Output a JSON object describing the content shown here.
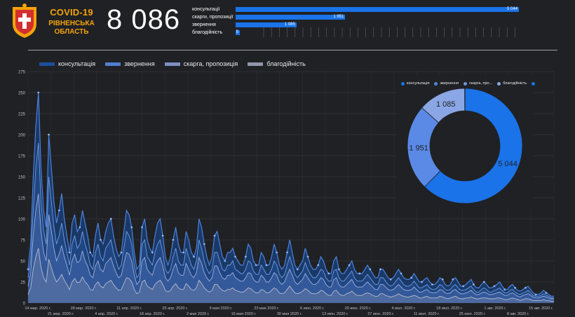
{
  "header": {
    "title": "COVID-19",
    "region": "РІВНЕНСЬКА ОБЛАСТЬ",
    "total": "8 086"
  },
  "categories": [
    {
      "label": "консультації",
      "value": "5 044",
      "fraction": 1.0
    },
    {
      "label": "скарги, пропозиції",
      "value": "1 951",
      "fraction": 0.387
    },
    {
      "label": "звернення",
      "value": "1 085",
      "fraction": 0.215
    },
    {
      "label": "благодійність",
      "value": "5",
      "fraction": 0.01
    }
  ],
  "colors": {
    "accent": "#1a73e8",
    "brand": "#f4a30a",
    "background": "#202124"
  },
  "chart_data": [
    {
      "type": "area",
      "legend": [
        "консультація",
        "звернення",
        "скарга, пропозиція",
        "благодійність"
      ],
      "legend_colors": [
        "#1a4f9c",
        "#4f7fd0",
        "#7d8fc4",
        "#8f96a8"
      ],
      "ylim": [
        0,
        275
      ],
      "yticks": [
        "0",
        "25",
        "50",
        "75",
        "100",
        "125",
        "150",
        "175",
        "200",
        "225",
        "250",
        "275"
      ],
      "grid": true,
      "xtick_top": [
        "14 мар. 2020 г.",
        "28 мар. 2020 г.",
        "11 апр. 2020 г.",
        "25 апр. 2020 г.",
        "9 мая 2020 г.",
        "23 мая 2020 г.",
        "6 июн. 2020 г.",
        "20 июн. 2020 г.",
        "4 июл. 2020 г.",
        "18 июл. 2020 г.",
        "1 авг. 2020 г.",
        "15 авг. 2020 г."
      ],
      "xtick_bottom": [
        "21 мар. 2020 г.",
        "4 апр. 2020 г.",
        "18 апр. 2020 г.",
        "2 мая 2020 г.",
        "16 мая 2020 г.",
        "30 мая 2020 г.",
        "13 июн. 2020 г.",
        "27 июн. 2020 г.",
        "11 июл. 2020 г.",
        "25 июл. 2020 г.",
        "8 авг. 2020 г."
      ],
      "series": [
        {
          "name": "консультація",
          "values": [
            40,
            70,
            150,
            210,
            250,
            160,
            110,
            90,
            200,
            160,
            120,
            95,
            110,
            130,
            100,
            80,
            60,
            95,
            105,
            85,
            90,
            110,
            95,
            80,
            60,
            55,
            80,
            95,
            75,
            70,
            85,
            95,
            100,
            80,
            65,
            55,
            60,
            85,
            110,
            105,
            90,
            60,
            40,
            45,
            90,
            100,
            75,
            65,
            60,
            80,
            95,
            100,
            80,
            55,
            45,
            55,
            75,
            90,
            70,
            60,
            60,
            85,
            75,
            60,
            55,
            65,
            100,
            90,
            70,
            55,
            45,
            55,
            80,
            85,
            70,
            55,
            50,
            60,
            60,
            65,
            55,
            50,
            45,
            45,
            55,
            70,
            65,
            50,
            45,
            45,
            60,
            55,
            45,
            45,
            55,
            70,
            60,
            45,
            40,
            45,
            60,
            75,
            60,
            45,
            40,
            45,
            50,
            65,
            55,
            45,
            40,
            40,
            45,
            55,
            50,
            40,
            35,
            35,
            50,
            55,
            40,
            35,
            35,
            40,
            45,
            50,
            40,
            35,
            35,
            35,
            40,
            45,
            40,
            35,
            30,
            30,
            40,
            40,
            35,
            30,
            28,
            30,
            35,
            40,
            35,
            30,
            28,
            28,
            30,
            35,
            30,
            25,
            25,
            28,
            30,
            25,
            22,
            22,
            25,
            30,
            28,
            22,
            20,
            22,
            28,
            30,
            25,
            20,
            20,
            22,
            25,
            28,
            22,
            18,
            18,
            22,
            25,
            22,
            18,
            18,
            20,
            22,
            25,
            20,
            16,
            16,
            20,
            22,
            18,
            15,
            14,
            16,
            18,
            20,
            16,
            12,
            10,
            10,
            12,
            15,
            12,
            10,
            8,
            8
          ]
        },
        {
          "name": "звернення",
          "values": [
            30,
            50,
            110,
            160,
            190,
            120,
            85,
            70,
            150,
            120,
            90,
            70,
            80,
            95,
            75,
            60,
            45,
            70,
            80,
            65,
            70,
            85,
            70,
            60,
            45,
            40,
            60,
            70,
            55,
            50,
            65,
            70,
            75,
            60,
            50,
            40,
            45,
            65,
            85,
            80,
            70,
            45,
            30,
            35,
            70,
            75,
            55,
            50,
            45,
            60,
            70,
            75,
            60,
            40,
            35,
            40,
            55,
            65,
            50,
            45,
            45,
            65,
            55,
            45,
            40,
            50,
            75,
            65,
            50,
            40,
            35,
            40,
            60,
            60,
            50,
            40,
            38,
            45,
            45,
            50,
            40,
            38,
            35,
            35,
            40,
            50,
            48,
            38,
            34,
            34,
            45,
            40,
            34,
            34,
            40,
            50,
            45,
            34,
            30,
            34,
            45,
            55,
            45,
            34,
            30,
            34,
            38,
            48,
            40,
            34,
            30,
            30,
            34,
            40,
            38,
            30,
            26,
            26,
            38,
            40,
            30,
            26,
            26,
            30,
            34,
            38,
            30,
            26,
            26,
            26,
            30,
            34,
            30,
            26,
            22,
            22,
            30,
            30,
            26,
            22,
            20,
            22,
            26,
            30,
            26,
            22,
            20,
            20,
            22,
            26,
            22,
            18,
            18,
            20,
            22,
            18,
            16,
            16,
            18,
            22,
            20,
            16,
            15,
            16,
            20,
            22,
            18,
            15,
            15,
            16,
            18,
            20,
            16,
            13,
            13,
            16,
            18,
            16,
            13,
            13,
            15,
            16,
            18,
            15,
            12,
            12,
            15,
            16,
            13,
            11,
            10,
            12,
            13,
            15,
            12,
            9,
            8,
            8,
            9,
            11,
            9,
            8,
            6,
            6
          ]
        },
        {
          "name": "скарга, пропозиція",
          "values": [
            20,
            35,
            80,
            110,
            130,
            85,
            60,
            50,
            105,
            85,
            65,
            50,
            58,
            68,
            55,
            45,
            33,
            50,
            58,
            48,
            50,
            62,
            50,
            44,
            33,
            30,
            44,
            50,
            40,
            37,
            47,
            50,
            54,
            44,
            36,
            30,
            33,
            47,
            60,
            58,
            50,
            33,
            22,
            26,
            50,
            54,
            40,
            36,
            33,
            44,
            50,
            54,
            44,
            30,
            26,
            30,
            40,
            47,
            36,
            33,
            33,
            47,
            40,
            33,
            30,
            36,
            54,
            47,
            36,
            30,
            26,
            30,
            44,
            44,
            36,
            30,
            28,
            33,
            33,
            36,
            30,
            28,
            26,
            26,
            30,
            36,
            35,
            28,
            25,
            25,
            33,
            30,
            25,
            25,
            30,
            36,
            33,
            25,
            22,
            25,
            33,
            40,
            33,
            25,
            22,
            25,
            28,
            35,
            30,
            25,
            22,
            22,
            25,
            30,
            28,
            22,
            19,
            19,
            28,
            30,
            22,
            19,
            19,
            22,
            25,
            28,
            22,
            19,
            19,
            19,
            22,
            25,
            22,
            19,
            16,
            16,
            22,
            22,
            19,
            16,
            15,
            16,
            19,
            22,
            19,
            16,
            15,
            15,
            16,
            19,
            16,
            13,
            13,
            15,
            16,
            13,
            12,
            12,
            13,
            16,
            15,
            12,
            11,
            12,
            15,
            16,
            13,
            11,
            11,
            12,
            13,
            15,
            12,
            10,
            10,
            12,
            13,
            12,
            10,
            10,
            11,
            12,
            13,
            11,
            9,
            9,
            11,
            12,
            10,
            8,
            7,
            9,
            10,
            11,
            9,
            7,
            6,
            6,
            7,
            8,
            7,
            6,
            5,
            5
          ]
        },
        {
          "name": "благодійність",
          "values": [
            10,
            18,
            40,
            55,
            65,
            42,
            30,
            25,
            52,
            42,
            32,
            25,
            29,
            34,
            27,
            22,
            16,
            25,
            29,
            24,
            25,
            31,
            25,
            22,
            16,
            15,
            22,
            25,
            20,
            18,
            23,
            25,
            27,
            22,
            18,
            15,
            16,
            23,
            30,
            29,
            25,
            16,
            11,
            13,
            25,
            27,
            20,
            18,
            16,
            22,
            25,
            27,
            22,
            15,
            13,
            15,
            20,
            23,
            18,
            16,
            16,
            23,
            20,
            16,
            15,
            18,
            27,
            23,
            18,
            15,
            13,
            15,
            22,
            22,
            18,
            15,
            14,
            16,
            16,
            18,
            15,
            14,
            13,
            13,
            15,
            18,
            17,
            14,
            12,
            12,
            16,
            15,
            12,
            12,
            15,
            18,
            16,
            12,
            11,
            12,
            16,
            20,
            16,
            12,
            11,
            12,
            14,
            17,
            15,
            12,
            11,
            11,
            12,
            15,
            14,
            11,
            9,
            9,
            14,
            15,
            11,
            9,
            9,
            11,
            12,
            14,
            11,
            9,
            9,
            9,
            11,
            12,
            11,
            9,
            8,
            8,
            11,
            11,
            9,
            8,
            7,
            8,
            9,
            11,
            9,
            8,
            7,
            7,
            8,
            9,
            8,
            6,
            6,
            7,
            8,
            6,
            6,
            6,
            6,
            8,
            7,
            6,
            5,
            6,
            7,
            8,
            6,
            5,
            5,
            6,
            6,
            7,
            6,
            5,
            5,
            6,
            6,
            6,
            5,
            5,
            5,
            6,
            6,
            5,
            4,
            4,
            5,
            6,
            5,
            4,
            3,
            4,
            5,
            5,
            4,
            3,
            3,
            3,
            3,
            4,
            3,
            3,
            2,
            2
          ]
        }
      ]
    },
    {
      "type": "pie",
      "legend": [
        "консультація",
        "звернення",
        "скарга, про...",
        "благодійність",
        ""
      ],
      "legend_colors": [
        "#1a73e8",
        "#4f86e0",
        "#6b93de",
        "#8aa6e4",
        "#1a73e8"
      ],
      "slices": [
        {
          "name": "консультація",
          "value": 5044,
          "label": "5 044",
          "color": "#1a73e8"
        },
        {
          "name": "скарга, пропозиція",
          "value": 1951,
          "label": "1 951",
          "color": "#5a8ae6"
        },
        {
          "name": "звернення",
          "value": 1085,
          "label": "1 085",
          "color": "#8aa6e4"
        },
        {
          "name": "благодійність",
          "value": 5,
          "label": "",
          "color": "#b8c4e6"
        }
      ]
    }
  ]
}
